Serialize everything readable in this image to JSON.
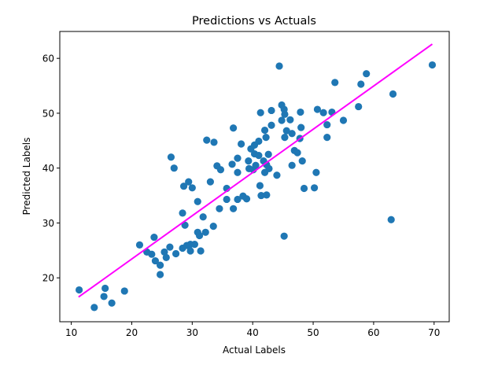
{
  "chart_data": {
    "type": "scatter",
    "title": "Predictions vs Actuals",
    "xlabel": "Actual Labels",
    "ylabel": "Predicted Labels",
    "xlim": [
      8.1,
      72.5
    ],
    "ylim": [
      12.0,
      64.9
    ],
    "xticks": [
      10,
      20,
      30,
      40,
      50,
      60,
      70
    ],
    "yticks": [
      20,
      30,
      40,
      50,
      60
    ],
    "grid": false,
    "legend": null,
    "colors": {
      "points": "#1f77b4",
      "fit_line": "#ff00ff"
    },
    "series": [
      {
        "name": "predictions",
        "kind": "scatter",
        "points": [
          [
            11.3,
            17.8
          ],
          [
            13.8,
            14.6
          ],
          [
            15.6,
            18.1
          ],
          [
            15.4,
            16.6
          ],
          [
            16.7,
            15.4
          ],
          [
            18.8,
            17.6
          ],
          [
            21.3,
            26.0
          ],
          [
            23.7,
            27.4
          ],
          [
            22.5,
            24.7
          ],
          [
            23.3,
            24.3
          ],
          [
            23.9,
            23.1
          ],
          [
            24.7,
            22.3
          ],
          [
            24.7,
            20.6
          ],
          [
            25.4,
            24.7
          ],
          [
            26.3,
            25.6
          ],
          [
            25.7,
            23.7
          ],
          [
            27.3,
            24.4
          ],
          [
            28.4,
            25.4
          ],
          [
            29.1,
            25.9
          ],
          [
            29.7,
            26.1
          ],
          [
            30.4,
            26.1
          ],
          [
            29.7,
            24.9
          ],
          [
            31.4,
            24.9
          ],
          [
            28.8,
            29.6
          ],
          [
            30.9,
            28.3
          ],
          [
            32.2,
            28.3
          ],
          [
            31.2,
            27.7
          ],
          [
            33.5,
            29.4
          ],
          [
            28.4,
            31.8
          ],
          [
            31.8,
            31.1
          ],
          [
            30.9,
            33.9
          ],
          [
            33.0,
            37.5
          ],
          [
            28.6,
            36.7
          ],
          [
            29.4,
            37.5
          ],
          [
            30.0,
            36.4
          ],
          [
            26.5,
            42.0
          ],
          [
            27.0,
            40.0
          ],
          [
            32.4,
            45.1
          ],
          [
            33.6,
            44.7
          ],
          [
            34.1,
            40.4
          ],
          [
            34.7,
            39.7
          ],
          [
            35.7,
            36.3
          ],
          [
            35.7,
            34.3
          ],
          [
            34.5,
            32.6
          ],
          [
            36.8,
            32.6
          ],
          [
            37.5,
            34.3
          ],
          [
            38.4,
            34.9
          ],
          [
            39.0,
            34.4
          ],
          [
            36.8,
            47.3
          ],
          [
            36.6,
            40.7
          ],
          [
            37.5,
            41.8
          ],
          [
            37.5,
            39.2
          ],
          [
            38.1,
            44.4
          ],
          [
            39.3,
            41.3
          ],
          [
            39.4,
            39.9
          ],
          [
            40.1,
            39.7
          ],
          [
            40.5,
            40.5
          ],
          [
            39.7,
            43.5
          ],
          [
            40.3,
            44.2
          ],
          [
            41.0,
            44.9
          ],
          [
            40.3,
            42.6
          ],
          [
            41.0,
            42.3
          ],
          [
            41.2,
            36.8
          ],
          [
            41.4,
            35.0
          ],
          [
            42.3,
            35.1
          ],
          [
            41.3,
            50.1
          ],
          [
            41.8,
            41.3
          ],
          [
            42.3,
            40.6
          ],
          [
            42.7,
            39.9
          ],
          [
            42.0,
            39.2
          ],
          [
            42.6,
            42.5
          ],
          [
            42.2,
            45.6
          ],
          [
            42.0,
            46.9
          ],
          [
            43.1,
            47.8
          ],
          [
            43.1,
            50.5
          ],
          [
            44.0,
            38.7
          ],
          [
            44.4,
            58.6
          ],
          [
            44.8,
            51.5
          ],
          [
            45.2,
            50.7
          ],
          [
            45.3,
            49.8
          ],
          [
            44.8,
            48.7
          ],
          [
            46.2,
            48.8
          ],
          [
            45.2,
            27.6
          ],
          [
            45.3,
            45.6
          ],
          [
            45.6,
            46.8
          ],
          [
            46.5,
            46.3
          ],
          [
            46.5,
            40.5
          ],
          [
            46.9,
            43.2
          ],
          [
            47.4,
            42.8
          ],
          [
            47.8,
            45.4
          ],
          [
            48.0,
            47.4
          ],
          [
            47.9,
            50.2
          ],
          [
            48.2,
            41.3
          ],
          [
            48.5,
            36.3
          ],
          [
            50.2,
            36.4
          ],
          [
            50.5,
            39.2
          ],
          [
            50.7,
            50.7
          ],
          [
            51.7,
            50.1
          ],
          [
            53.1,
            50.2
          ],
          [
            52.3,
            47.9
          ],
          [
            52.3,
            45.6
          ],
          [
            53.6,
            55.6
          ],
          [
            55.0,
            48.7
          ],
          [
            57.5,
            51.2
          ],
          [
            57.9,
            55.3
          ],
          [
            58.8,
            57.2
          ],
          [
            63.2,
            53.5
          ],
          [
            62.9,
            30.6
          ],
          [
            69.7,
            58.8
          ]
        ]
      },
      {
        "name": "regression line",
        "kind": "line",
        "points": [
          [
            11.2,
            16.5
          ],
          [
            69.7,
            62.6
          ]
        ]
      }
    ]
  }
}
